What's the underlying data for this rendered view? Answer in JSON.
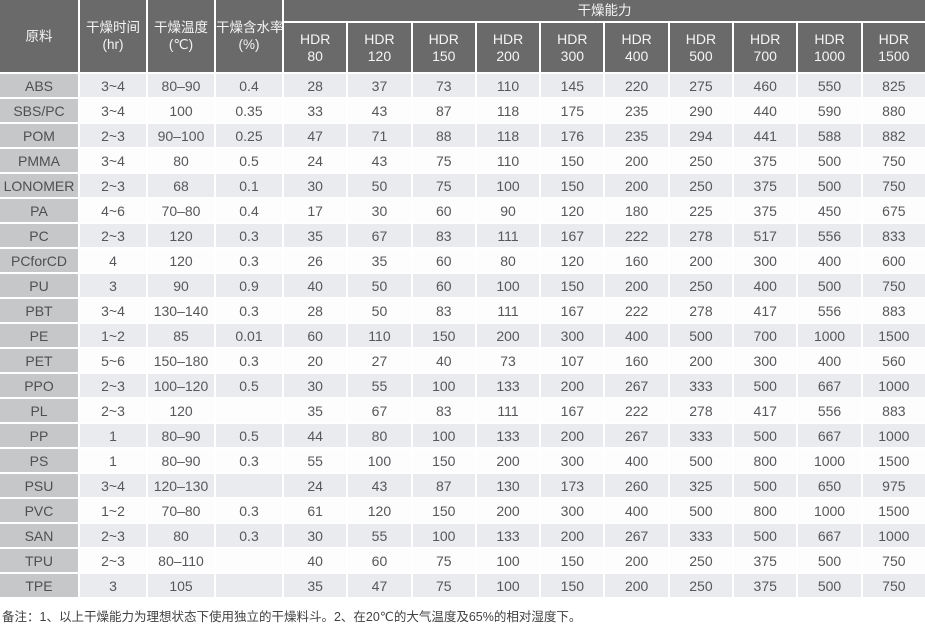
{
  "colors": {
    "header_bg": "#6a6a6a",
    "header_fg": "#f5f5f5",
    "row_bg": "#fdfdfd",
    "row_alt_bg": "#e9ebee",
    "material_bg": "#c6c7c9",
    "material_fg": "#4e4f51",
    "cell_fg": "#56575a"
  },
  "table": {
    "header": {
      "material": "原料",
      "time": {
        "line1": "干燥时间",
        "line2": "(hr)"
      },
      "temp": {
        "line1": "干燥温度",
        "line2": "(℃)"
      },
      "moisture": {
        "line1": "干燥含水率",
        "line2": "(%)"
      },
      "capacity_group": "干燥能力"
    },
    "hdr_columns": [
      {
        "line1": "HDR",
        "line2": "80"
      },
      {
        "line1": "HDR",
        "line2": "120"
      },
      {
        "line1": "HDR",
        "line2": "150"
      },
      {
        "line1": "HDR",
        "line2": "200"
      },
      {
        "line1": "HDR",
        "line2": "300"
      },
      {
        "line1": "HDR",
        "line2": "400"
      },
      {
        "line1": "HDR",
        "line2": "500"
      },
      {
        "line1": "HDR",
        "line2": "700"
      },
      {
        "line1": "HDR",
        "line2": "1000"
      },
      {
        "line1": "HDR",
        "line2": "1500"
      }
    ],
    "rows": [
      {
        "material": "ABS",
        "time": "3~4",
        "temp": "80–90",
        "moisture": "0.4",
        "capacities": [
          "28",
          "37",
          "73",
          "110",
          "145",
          "220",
          "275",
          "460",
          "550",
          "825"
        ]
      },
      {
        "material": "SBS/PC",
        "time": "3~4",
        "temp": "100",
        "moisture": "0.35",
        "capacities": [
          "33",
          "43",
          "87",
          "118",
          "175",
          "235",
          "290",
          "440",
          "590",
          "880"
        ]
      },
      {
        "material": "POM",
        "time": "2~3",
        "temp": "90–100",
        "moisture": "0.25",
        "capacities": [
          "47",
          "71",
          "88",
          "118",
          "176",
          "235",
          "294",
          "441",
          "588",
          "882"
        ]
      },
      {
        "material": "PMMA",
        "time": "3~4",
        "temp": "80",
        "moisture": "0.5",
        "capacities": [
          "24",
          "43",
          "75",
          "110",
          "150",
          "200",
          "250",
          "375",
          "500",
          "750"
        ]
      },
      {
        "material": "LONOMER",
        "time": "2~3",
        "temp": "68",
        "moisture": "0.1",
        "capacities": [
          "30",
          "50",
          "75",
          "100",
          "150",
          "200",
          "250",
          "375",
          "500",
          "750"
        ]
      },
      {
        "material": "PA",
        "time": "4~6",
        "temp": "70–80",
        "moisture": "0.4",
        "capacities": [
          "17",
          "30",
          "60",
          "90",
          "120",
          "180",
          "225",
          "375",
          "450",
          "675"
        ]
      },
      {
        "material": "PC",
        "time": "2~3",
        "temp": "120",
        "moisture": "0.3",
        "capacities": [
          "35",
          "67",
          "83",
          "111",
          "167",
          "222",
          "278",
          "517",
          "556",
          "833"
        ]
      },
      {
        "material": "PCforCD",
        "time": "4",
        "temp": "120",
        "moisture": "0.3",
        "capacities": [
          "26",
          "35",
          "60",
          "80",
          "120",
          "160",
          "200",
          "300",
          "400",
          "600"
        ]
      },
      {
        "material": "PU",
        "time": "3",
        "temp": "90",
        "moisture": "0.9",
        "capacities": [
          "40",
          "50",
          "60",
          "100",
          "150",
          "200",
          "250",
          "400",
          "500",
          "750"
        ]
      },
      {
        "material": "PBT",
        "time": "3~4",
        "temp": "130–140",
        "moisture": "0.3",
        "capacities": [
          "28",
          "50",
          "83",
          "111",
          "167",
          "222",
          "278",
          "417",
          "556",
          "883"
        ]
      },
      {
        "material": "PE",
        "time": "1~2",
        "temp": "85",
        "moisture": "0.01",
        "capacities": [
          "60",
          "110",
          "150",
          "200",
          "300",
          "400",
          "500",
          "700",
          "1000",
          "1500"
        ]
      },
      {
        "material": "PET",
        "time": "5~6",
        "temp": "150–180",
        "moisture": "0.3",
        "capacities": [
          "20",
          "27",
          "40",
          "73",
          "107",
          "160",
          "200",
          "300",
          "400",
          "560"
        ]
      },
      {
        "material": "PPO",
        "time": "2~3",
        "temp": "100–120",
        "moisture": "0.5",
        "capacities": [
          "30",
          "55",
          "100",
          "133",
          "200",
          "267",
          "333",
          "500",
          "667",
          "1000"
        ]
      },
      {
        "material": "PL",
        "time": "2~3",
        "temp": "120",
        "moisture": "",
        "capacities": [
          "35",
          "67",
          "83",
          "111",
          "167",
          "222",
          "278",
          "417",
          "556",
          "883"
        ]
      },
      {
        "material": "PP",
        "time": "1",
        "temp": "80–90",
        "moisture": "0.5",
        "capacities": [
          "44",
          "80",
          "100",
          "133",
          "200",
          "267",
          "333",
          "500",
          "667",
          "1000"
        ]
      },
      {
        "material": "PS",
        "time": "1",
        "temp": "80–90",
        "moisture": "0.3",
        "capacities": [
          "55",
          "100",
          "150",
          "200",
          "300",
          "400",
          "500",
          "800",
          "1000",
          "1500"
        ]
      },
      {
        "material": "PSU",
        "time": "3~4",
        "temp": "120–130",
        "moisture": "",
        "capacities": [
          "24",
          "43",
          "87",
          "130",
          "173",
          "260",
          "325",
          "500",
          "650",
          "975"
        ]
      },
      {
        "material": "PVC",
        "time": "1~2",
        "temp": "70–80",
        "moisture": "0.3",
        "capacities": [
          "61",
          "120",
          "150",
          "200",
          "300",
          "400",
          "500",
          "800",
          "1000",
          "1500"
        ]
      },
      {
        "material": "SAN",
        "time": "2~3",
        "temp": "80",
        "moisture": "0.3",
        "capacities": [
          "30",
          "55",
          "100",
          "133",
          "200",
          "267",
          "333",
          "500",
          "667",
          "1000"
        ]
      },
      {
        "material": "TPU",
        "time": "2~3",
        "temp": "80–110",
        "moisture": "",
        "capacities": [
          "40",
          "60",
          "75",
          "100",
          "150",
          "200",
          "250",
          "375",
          "500",
          "750"
        ]
      },
      {
        "material": "TPE",
        "time": "3",
        "temp": "105",
        "moisture": "",
        "capacities": [
          "35",
          "47",
          "75",
          "100",
          "150",
          "200",
          "250",
          "375",
          "500",
          "750"
        ]
      }
    ]
  },
  "footnote": "备注：1、以上干燥能力为理想状态下使用独立的干燥料斗。2、在20℃的大气温度及65%的相对湿度下。"
}
